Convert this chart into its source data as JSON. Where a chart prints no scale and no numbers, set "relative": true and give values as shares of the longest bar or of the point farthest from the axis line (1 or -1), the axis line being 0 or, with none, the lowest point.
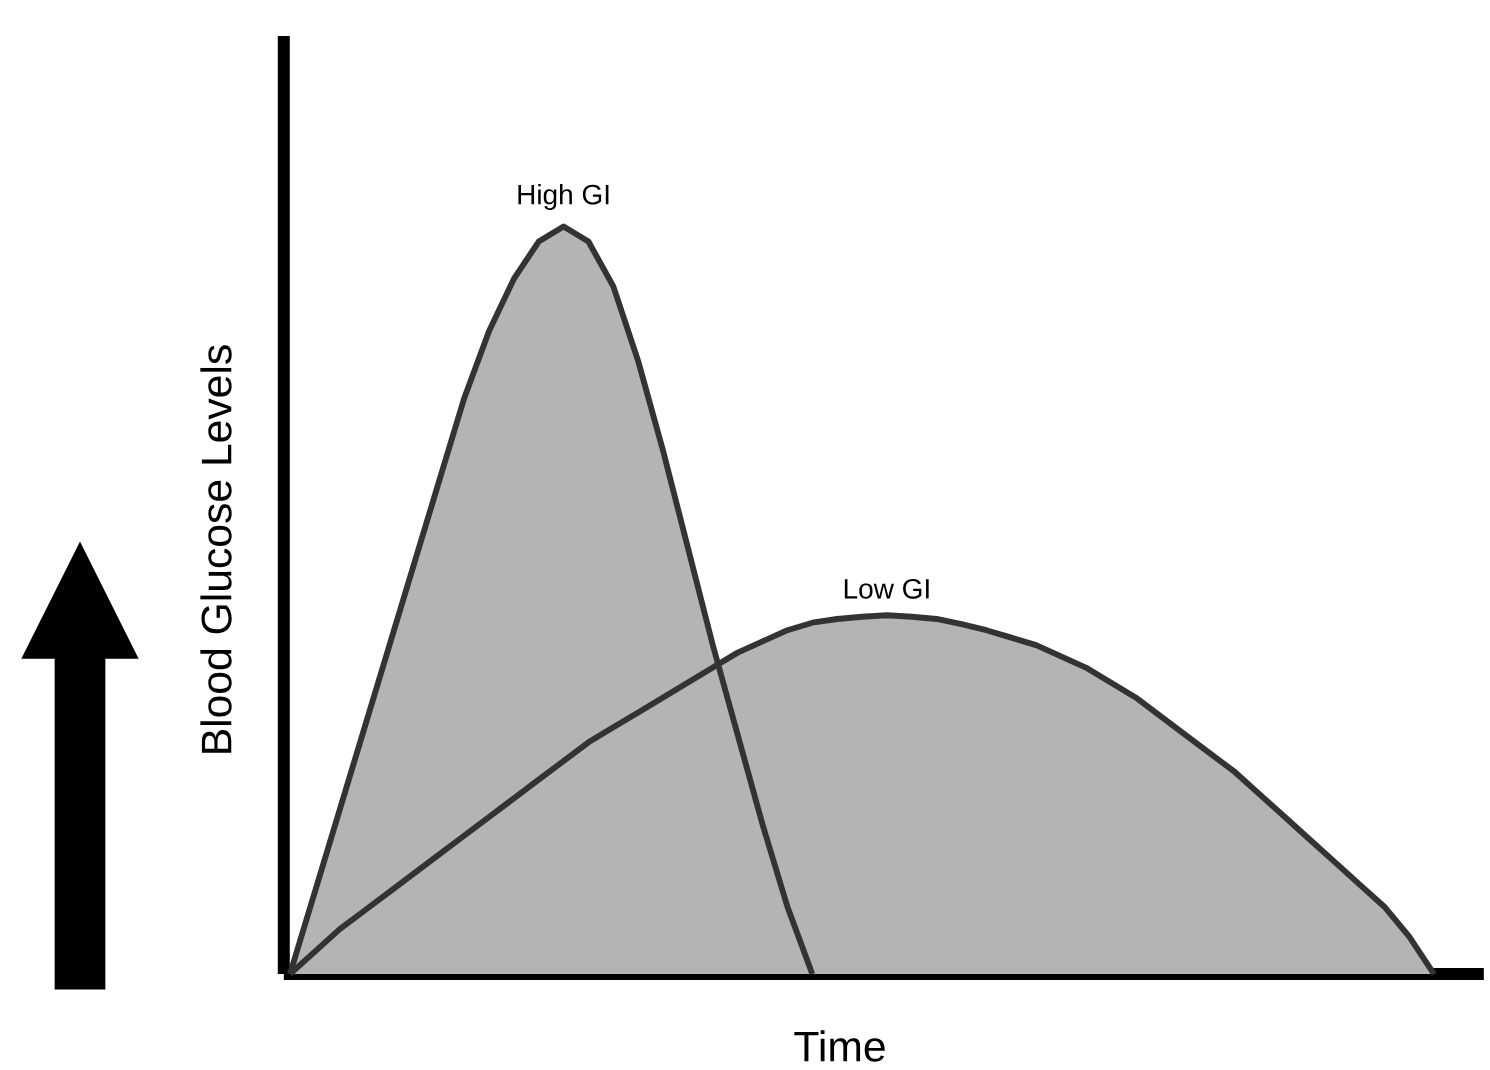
{
  "chart_data": {
    "type": "area",
    "relative": true,
    "xlabel": "Time",
    "ylabel": "Blood Glucose Levels",
    "categories": [
      null,
      null,
      null,
      null,
      null,
      null,
      null,
      null,
      null,
      null,
      null,
      null,
      null,
      null,
      null,
      null,
      null,
      null,
      null,
      null,
      null,
      null,
      null,
      null,
      null,
      null,
      null,
      null,
      null,
      null,
      null,
      null,
      null,
      null,
      null,
      null,
      null,
      null,
      null,
      null,
      null,
      null,
      null,
      null,
      null,
      null,
      null,
      null,
      null
    ],
    "series": [
      {
        "name": "High GI",
        "color": "#b4b4b4",
        "values": [
          0,
          0.11,
          0.22,
          0.33,
          0.44,
          0.55,
          0.66,
          0.77,
          0.86,
          0.93,
          0.98,
          1.0,
          0.98,
          0.92,
          0.82,
          0.7,
          0.57,
          0.44,
          0.32,
          0.2,
          0.09,
          0.0,
          null,
          null,
          null,
          null,
          null,
          null,
          null,
          null,
          null,
          null,
          null,
          null,
          null,
          null,
          null,
          null,
          null,
          null,
          null,
          null,
          null,
          null,
          null,
          null,
          null,
          null,
          null
        ]
      },
      {
        "name": "Low GI",
        "color": "#b4b4b4",
        "values": [
          0,
          0.03,
          0.06,
          0.085,
          0.11,
          0.135,
          0.16,
          0.185,
          0.21,
          0.235,
          0.26,
          0.285,
          0.31,
          0.33,
          0.35,
          0.37,
          0.39,
          0.41,
          0.43,
          0.445,
          0.46,
          0.47,
          0.475,
          0.478,
          0.48,
          0.478,
          0.475,
          0.468,
          0.46,
          0.45,
          0.44,
          0.425,
          0.41,
          0.39,
          0.37,
          0.345,
          0.32,
          0.295,
          0.27,
          0.24,
          0.21,
          0.18,
          0.15,
          0.12,
          0.09,
          0.05,
          0.0,
          null,
          null
        ]
      }
    ]
  }
}
